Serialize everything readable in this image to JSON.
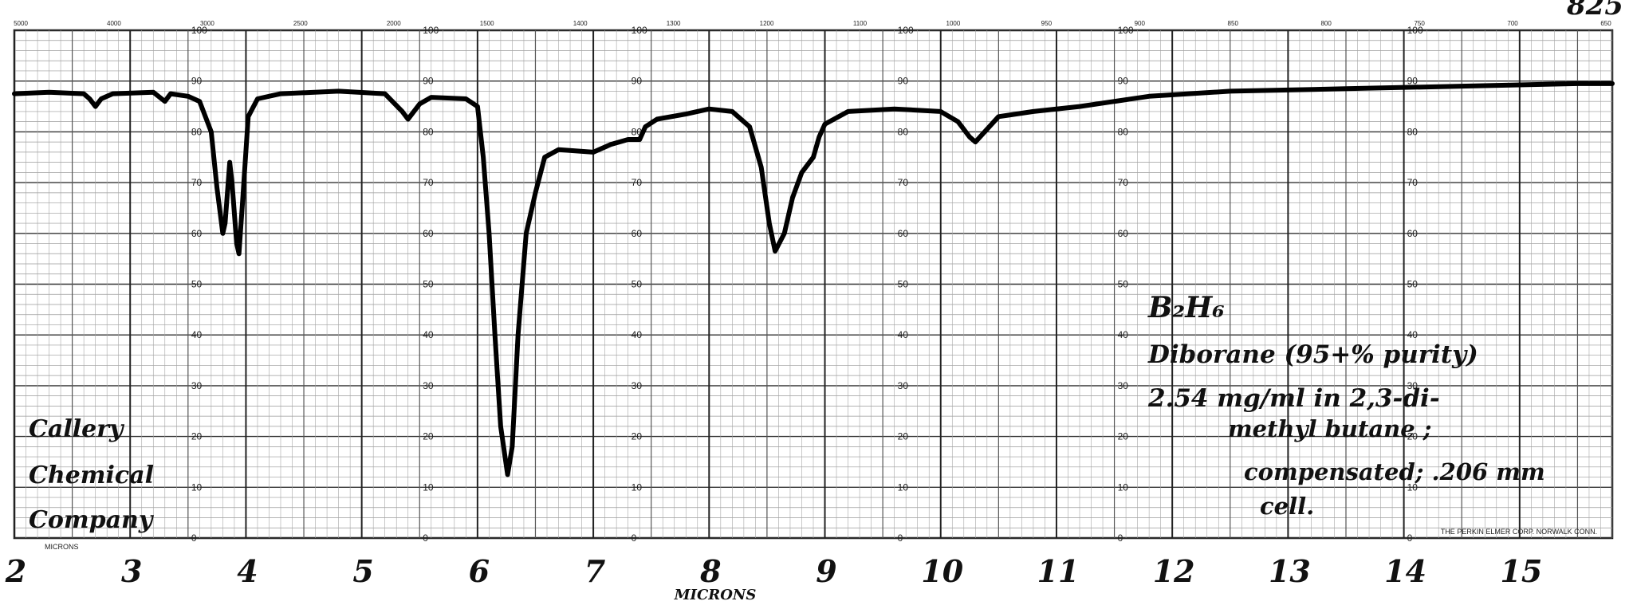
{
  "page_number": "825",
  "chart_data": {
    "type": "line",
    "xlabel": "MICRONS",
    "x_axis_corner_label": "MICRONS",
    "ylim": [
      0,
      100
    ],
    "xlim": [
      2,
      15.8
    ],
    "x_ticks": [
      2,
      3,
      4,
      5,
      6,
      7,
      8,
      9,
      10,
      11,
      12,
      13,
      14,
      15
    ],
    "x_tick_labels": [
      "2",
      "3",
      "4",
      "5",
      "6",
      "7",
      "8",
      "9",
      "10",
      "11",
      "12",
      "13",
      "14",
      "15"
    ],
    "y_tick_labels": [
      "0",
      "10",
      "20",
      "30",
      "40",
      "50",
      "60",
      "70",
      "80",
      "90",
      "100"
    ],
    "y_scale_columns_at_micron": [
      3.5,
      5.5,
      7.3,
      9.6,
      11.5,
      14.0
    ],
    "top_wavenumber_labels": [
      "5000",
      "4000",
      "3000",
      "2500",
      "2000",
      "1500",
      "1400",
      "1300",
      "1200",
      "1100",
      "1000",
      "950",
      "900",
      "850",
      "800",
      "750",
      "700",
      "650"
    ],
    "grid": true,
    "annotation_block": [
      "B₂H₆",
      "Diborane (95+% purity)",
      "2.54 mg/ml in 2,3-di-",
      "methyl butane ;",
      "compensated; .206 mm",
      "cell."
    ],
    "left_annotation": [
      "Callery",
      "Chemical",
      "Company"
    ],
    "printer_credit": "THE PERKIN ELMER CORP. NORWALK CONN.",
    "series": [
      {
        "points": [
          [
            2.0,
            87.5
          ],
          [
            2.3,
            87.8
          ],
          [
            2.6,
            87.5
          ],
          [
            2.65,
            86.5
          ],
          [
            2.7,
            85.0
          ],
          [
            2.75,
            86.5
          ],
          [
            2.85,
            87.5
          ],
          [
            3.2,
            87.8
          ],
          [
            3.3,
            86.0
          ],
          [
            3.35,
            87.5
          ],
          [
            3.5,
            87.0
          ],
          [
            3.6,
            86.0
          ],
          [
            3.7,
            80.0
          ],
          [
            3.75,
            69.0
          ],
          [
            3.8,
            60.0
          ],
          [
            3.82,
            62.0
          ],
          [
            3.86,
            74.0
          ],
          [
            3.88,
            70.0
          ],
          [
            3.92,
            58.0
          ],
          [
            3.94,
            56.0
          ],
          [
            3.97,
            66.0
          ],
          [
            4.02,
            83.0
          ],
          [
            4.1,
            86.5
          ],
          [
            4.3,
            87.5
          ],
          [
            4.8,
            88.0
          ],
          [
            5.2,
            87.5
          ],
          [
            5.35,
            84.0
          ],
          [
            5.4,
            82.5
          ],
          [
            5.5,
            85.5
          ],
          [
            5.6,
            86.8
          ],
          [
            5.9,
            86.5
          ],
          [
            6.0,
            85.0
          ],
          [
            6.05,
            75.0
          ],
          [
            6.1,
            60.0
          ],
          [
            6.15,
            40.0
          ],
          [
            6.2,
            22.0
          ],
          [
            6.26,
            12.5
          ],
          [
            6.3,
            18.0
          ],
          [
            6.35,
            40.0
          ],
          [
            6.42,
            60.0
          ],
          [
            6.5,
            68.0
          ],
          [
            6.58,
            75.0
          ],
          [
            6.7,
            76.5
          ],
          [
            7.0,
            76.0
          ],
          [
            7.15,
            77.5
          ],
          [
            7.3,
            78.5
          ],
          [
            7.4,
            78.5
          ],
          [
            7.45,
            81.0
          ],
          [
            7.55,
            82.5
          ],
          [
            7.8,
            83.5
          ],
          [
            8.0,
            84.5
          ],
          [
            8.2,
            84.0
          ],
          [
            8.35,
            81.0
          ],
          [
            8.45,
            73.0
          ],
          [
            8.52,
            62.0
          ],
          [
            8.57,
            56.5
          ],
          [
            8.65,
            60.0
          ],
          [
            8.72,
            67.0
          ],
          [
            8.8,
            72.0
          ],
          [
            8.9,
            75.0
          ],
          [
            8.95,
            79.0
          ],
          [
            9.0,
            81.5
          ],
          [
            9.2,
            84.0
          ],
          [
            9.6,
            84.5
          ],
          [
            10.0,
            84.0
          ],
          [
            10.15,
            82.0
          ],
          [
            10.25,
            79.0
          ],
          [
            10.3,
            78.0
          ],
          [
            10.4,
            80.5
          ],
          [
            10.5,
            83.0
          ],
          [
            10.8,
            84.0
          ],
          [
            11.2,
            85.0
          ],
          [
            11.8,
            87.0
          ],
          [
            12.5,
            88.0
          ],
          [
            13.5,
            88.5
          ],
          [
            14.5,
            89.0
          ],
          [
            15.5,
            89.5
          ],
          [
            15.8,
            89.5
          ]
        ]
      }
    ]
  }
}
